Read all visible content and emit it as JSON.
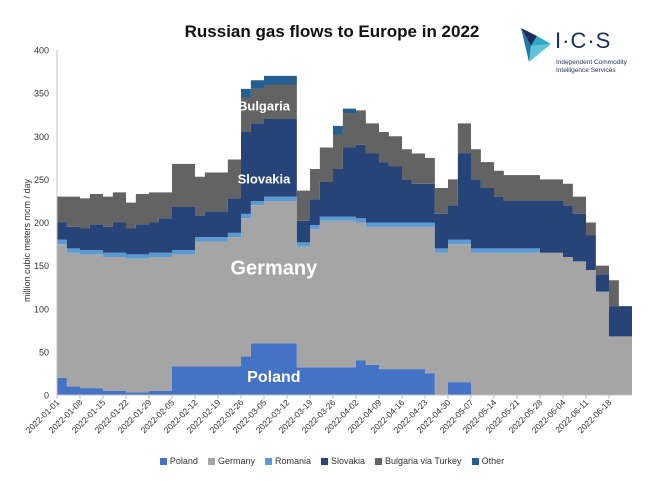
{
  "chart_data": {
    "type": "area",
    "title": "Russian gas flows to Europe in 2022",
    "ylabel": "million cubic meters mcm / day",
    "xlabel": "",
    "ylim": [
      0,
      400
    ],
    "yticks": [
      0,
      50,
      100,
      150,
      200,
      250,
      300,
      350,
      400
    ],
    "grid": false,
    "legend_position": "bottom",
    "x_tick_labels": [
      "2022-01-01",
      "2022-01-08",
      "2022-01-15",
      "2022-01-22",
      "2022-01-29",
      "2022-02-05",
      "2022-02-12",
      "2022-02-19",
      "2022-02-26",
      "2022-03-05",
      "2022-03-12",
      "2022-03-19",
      "2022-03-26",
      "2022-04-02",
      "2022-04-09",
      "2022-04-16",
      "2022-04-23",
      "2022-04-30",
      "2022-05-07",
      "2022-05-14",
      "2022-05-21",
      "2022-05-28",
      "2022-06-04",
      "2022-06-11",
      "2022-06-18"
    ],
    "x": [
      "2022-01-01",
      "2022-01-04",
      "2022-01-08",
      "2022-01-11",
      "2022-01-15",
      "2022-01-18",
      "2022-01-22",
      "2022-01-25",
      "2022-01-29",
      "2022-02-01",
      "2022-02-05",
      "2022-02-08",
      "2022-02-12",
      "2022-02-15",
      "2022-02-19",
      "2022-02-22",
      "2022-02-26",
      "2022-03-01",
      "2022-03-05",
      "2022-03-08",
      "2022-03-12",
      "2022-03-15",
      "2022-03-19",
      "2022-03-22",
      "2022-03-26",
      "2022-03-29",
      "2022-04-02",
      "2022-04-05",
      "2022-04-09",
      "2022-04-12",
      "2022-04-16",
      "2022-04-19",
      "2022-04-23",
      "2022-04-26",
      "2022-04-30",
      "2022-05-03",
      "2022-05-07",
      "2022-05-10",
      "2022-05-14",
      "2022-05-17",
      "2022-05-21",
      "2022-05-24",
      "2022-05-28",
      "2022-05-31",
      "2022-06-04",
      "2022-06-07",
      "2022-06-11",
      "2022-06-14",
      "2022-06-18",
      "2022-06-21"
    ],
    "series": [
      {
        "name": "Poland",
        "color": "#4472c4",
        "values": [
          20,
          10,
          8,
          8,
          5,
          5,
          3,
          3,
          5,
          5,
          33,
          33,
          33,
          33,
          33,
          33,
          45,
          60,
          60,
          60,
          60,
          32,
          32,
          32,
          32,
          32,
          40,
          35,
          30,
          30,
          30,
          30,
          25,
          0,
          15,
          15,
          0,
          0,
          0,
          0,
          0,
          0,
          0,
          0,
          0,
          0,
          0,
          0,
          0,
          0
        ]
      },
      {
        "name": "Germany",
        "color": "#a5a5a5",
        "values": [
          155,
          155,
          155,
          155,
          155,
          155,
          155,
          155,
          155,
          155,
          130,
          130,
          145,
          145,
          145,
          150,
          160,
          160,
          165,
          165,
          165,
          140,
          160,
          170,
          170,
          170,
          160,
          160,
          165,
          165,
          165,
          165,
          170,
          165,
          160,
          160,
          165,
          165,
          165,
          165,
          165,
          165,
          165,
          165,
          160,
          155,
          145,
          120,
          68,
          68
        ]
      },
      {
        "name": "Romania",
        "color": "#5b9bd5",
        "values": [
          5,
          5,
          5,
          5,
          5,
          5,
          5,
          5,
          5,
          5,
          5,
          5,
          5,
          5,
          5,
          5,
          5,
          5,
          5,
          5,
          5,
          5,
          5,
          5,
          5,
          5,
          5,
          5,
          5,
          5,
          5,
          5,
          5,
          5,
          5,
          5,
          5,
          5,
          5,
          5,
          5,
          5,
          0,
          0,
          0,
          0,
          0,
          0,
          0,
          0
        ]
      },
      {
        "name": "Slovakia",
        "color": "#264478",
        "values": [
          20,
          25,
          25,
          30,
          30,
          35,
          30,
          35,
          35,
          40,
          50,
          50,
          25,
          30,
          30,
          40,
          95,
          90,
          90,
          90,
          90,
          25,
          30,
          40,
          55,
          80,
          85,
          80,
          70,
          65,
          50,
          45,
          45,
          40,
          40,
          100,
          80,
          70,
          60,
          55,
          55,
          55,
          60,
          60,
          60,
          55,
          40,
          20,
          35,
          35
        ]
      },
      {
        "name": "Bulgaria via Turkey",
        "color": "#636363",
        "values": [
          30,
          35,
          35,
          35,
          35,
          35,
          30,
          35,
          35,
          30,
          50,
          50,
          45,
          45,
          45,
          45,
          40,
          40,
          40,
          40,
          40,
          35,
          35,
          40,
          40,
          40,
          40,
          35,
          35,
          35,
          35,
          35,
          30,
          30,
          30,
          35,
          35,
          30,
          30,
          30,
          30,
          30,
          25,
          25,
          25,
          20,
          15,
          10,
          30,
          0
        ]
      },
      {
        "name": "Other",
        "color": "#255e91",
        "values": [
          0,
          0,
          0,
          0,
          0,
          0,
          0,
          0,
          0,
          0,
          0,
          0,
          0,
          0,
          0,
          0,
          10,
          10,
          10,
          10,
          10,
          0,
          0,
          0,
          10,
          5,
          0,
          0,
          0,
          0,
          0,
          0,
          0,
          0,
          0,
          0,
          0,
          0,
          0,
          0,
          0,
          0,
          0,
          0,
          0,
          0,
          0,
          0,
          0,
          0
        ]
      }
    ],
    "annotations": [
      {
        "text": "Bulgaria",
        "x": "2022-03-05",
        "y": 330
      },
      {
        "text": "Slovakia",
        "x": "2022-03-05",
        "y": 245
      },
      {
        "text": "Germany",
        "x": "2022-03-08",
        "y": 140
      },
      {
        "text": "Poland",
        "x": "2022-03-08",
        "y": 15
      }
    ]
  },
  "logo": {
    "name": "I·C·S",
    "line1": "Independent Commodity",
    "line2": "Intelligence Services"
  }
}
